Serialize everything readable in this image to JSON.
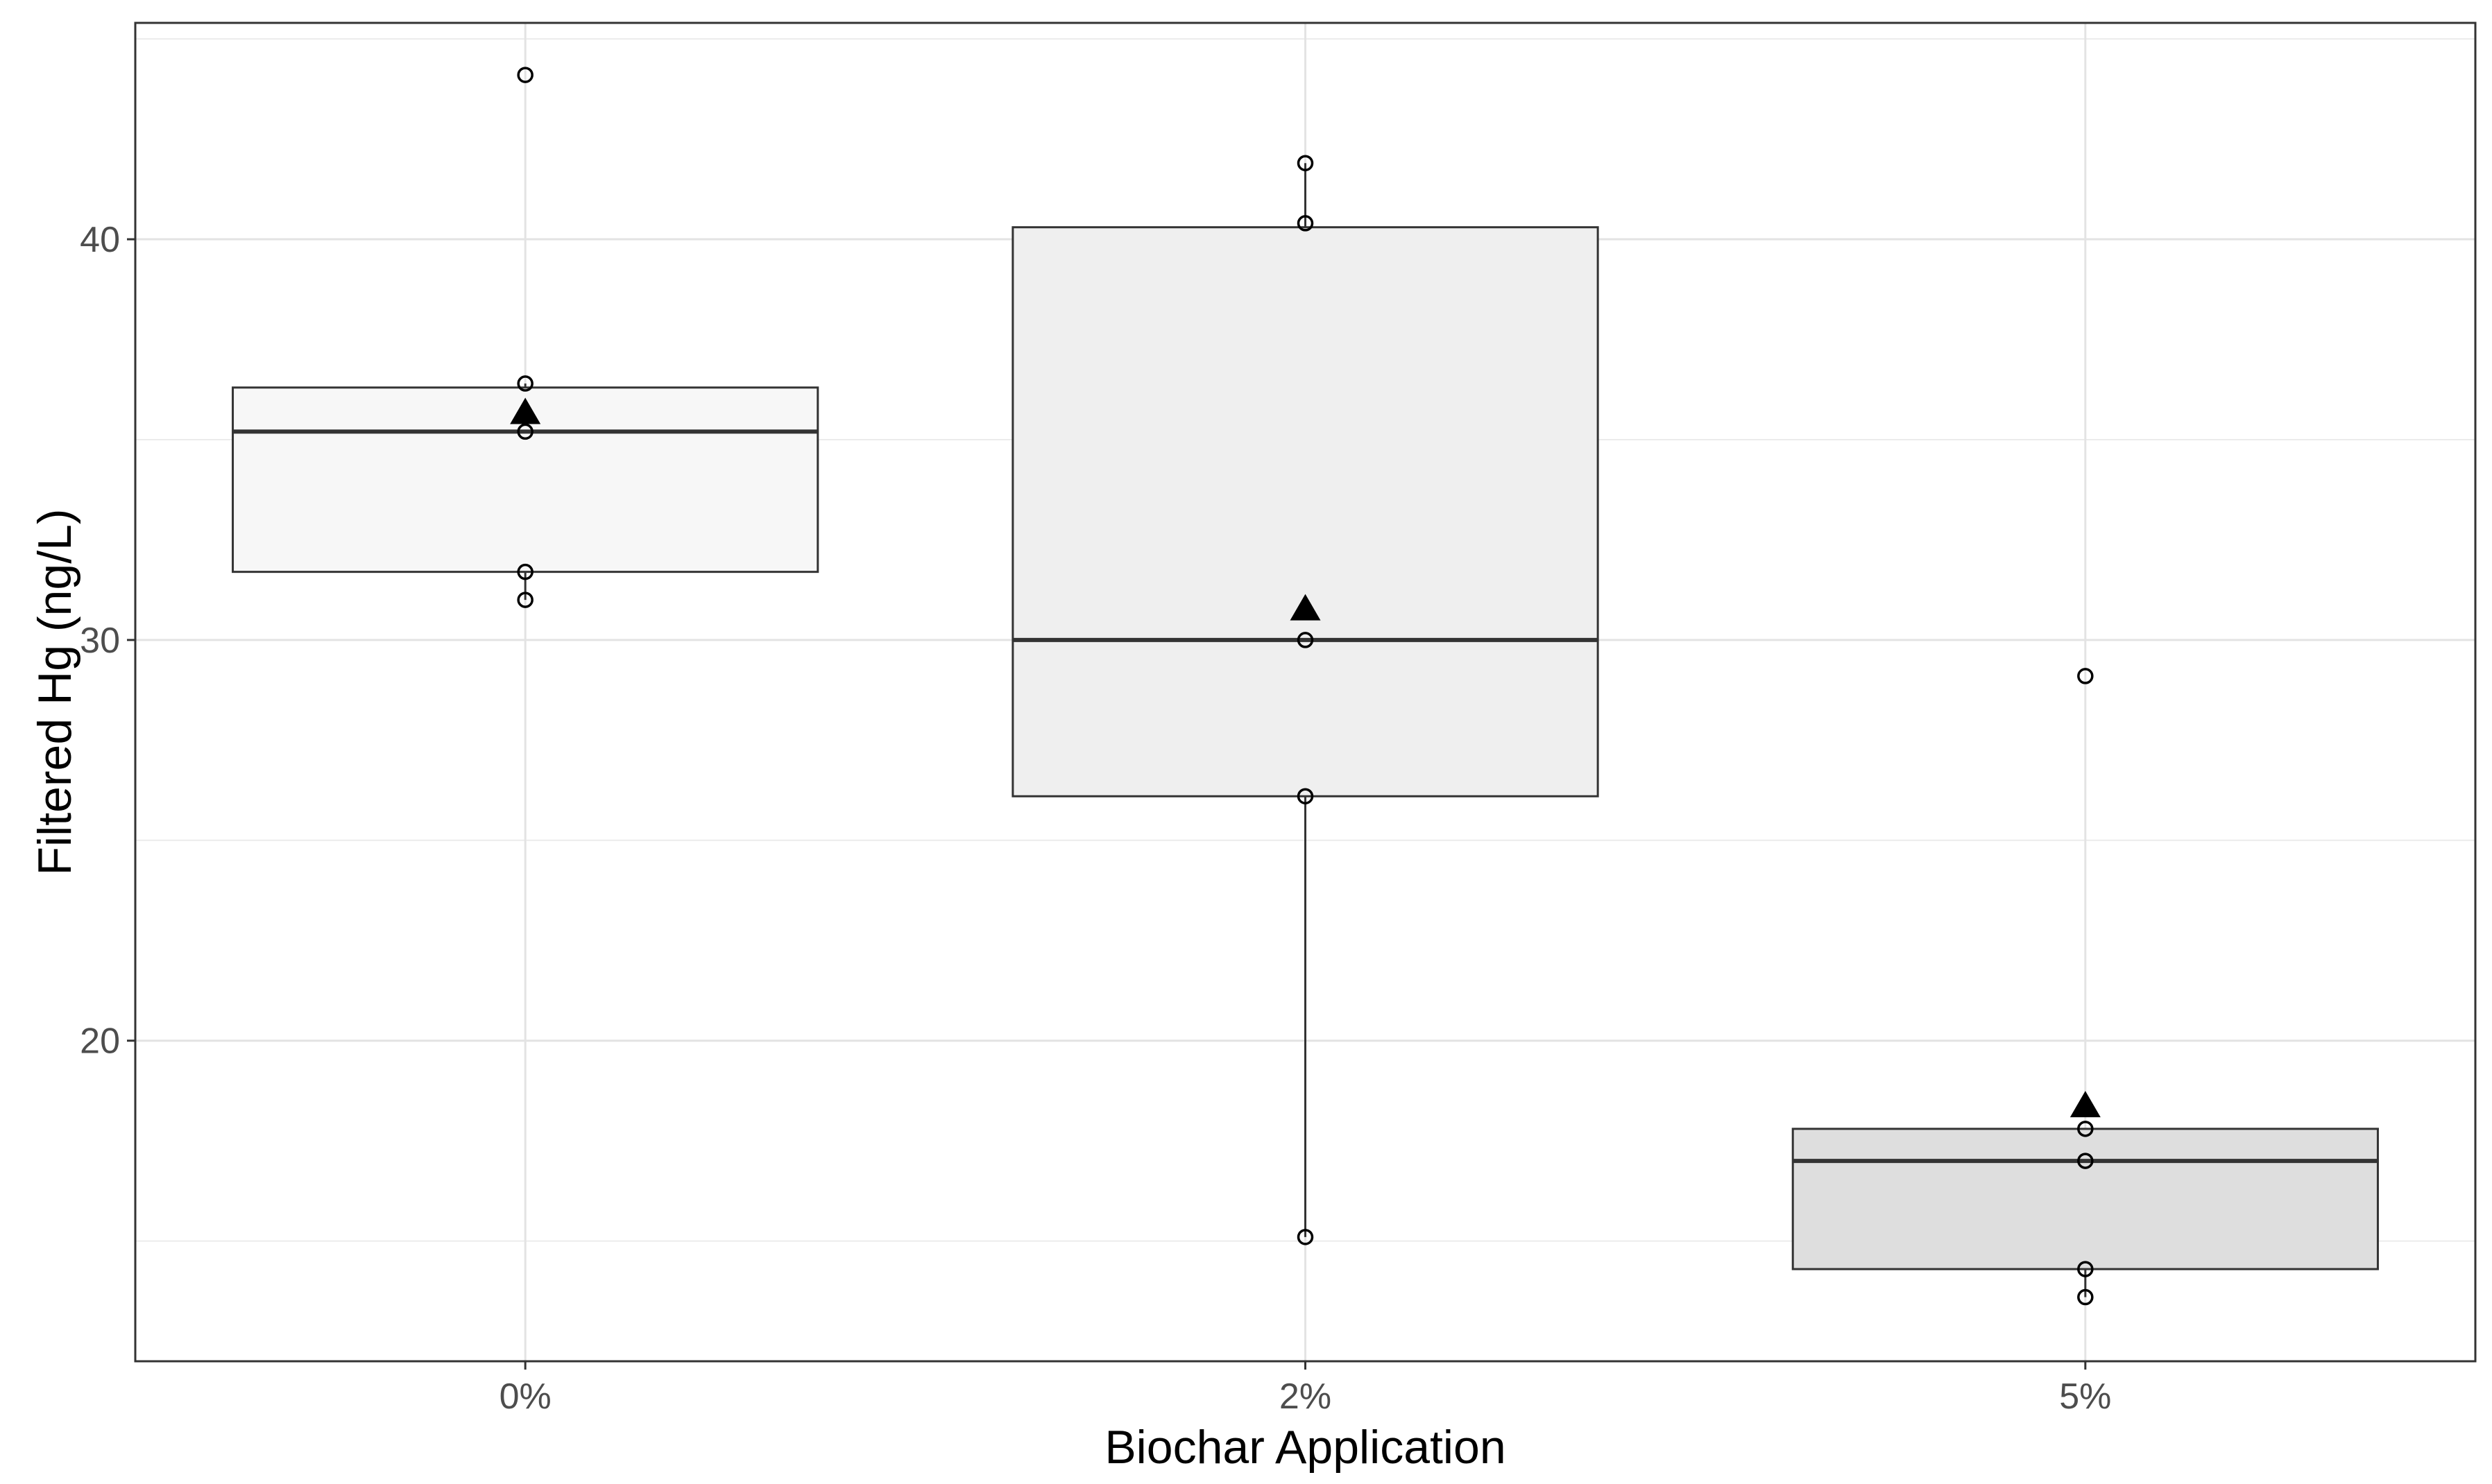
{
  "chart_data": {
    "type": "box",
    "title": "",
    "xlabel": "Biochar Application",
    "ylabel": "Filtered Hg (ng/L)",
    "categories": [
      "0%",
      "2%",
      "5%"
    ],
    "ylim": [
      12.0,
      45.4
    ],
    "y_ticks": [
      20,
      30,
      40
    ],
    "y_tick_labels": [
      "20",
      "30",
      "40"
    ],
    "grid": true,
    "legend": "none",
    "boxes": [
      {
        "category": "0%",
        "q1": 31.7,
        "median": 35.2,
        "q3": 36.3,
        "whisker_low": 31.0,
        "whisker_high": 36.4,
        "mean": 35.7,
        "fill": "#f7f7f7",
        "points": [
          44.1,
          36.4,
          35.2,
          31.7,
          31.0
        ]
      },
      {
        "category": "2%",
        "q1": 26.1,
        "median": 30.0,
        "q3": 40.3,
        "whisker_low": 15.1,
        "whisker_high": 41.9,
        "mean": 30.8,
        "fill": "#efefef",
        "points": [
          41.9,
          40.4,
          30.0,
          26.1,
          15.1
        ]
      },
      {
        "category": "5%",
        "q1": 14.3,
        "median": 17.0,
        "q3": 17.8,
        "whisker_low": 13.6,
        "whisker_high": 17.8,
        "mean": 18.4,
        "fill": "#dedede",
        "points": [
          29.1,
          17.8,
          17.0,
          14.3,
          13.6
        ]
      }
    ]
  }
}
